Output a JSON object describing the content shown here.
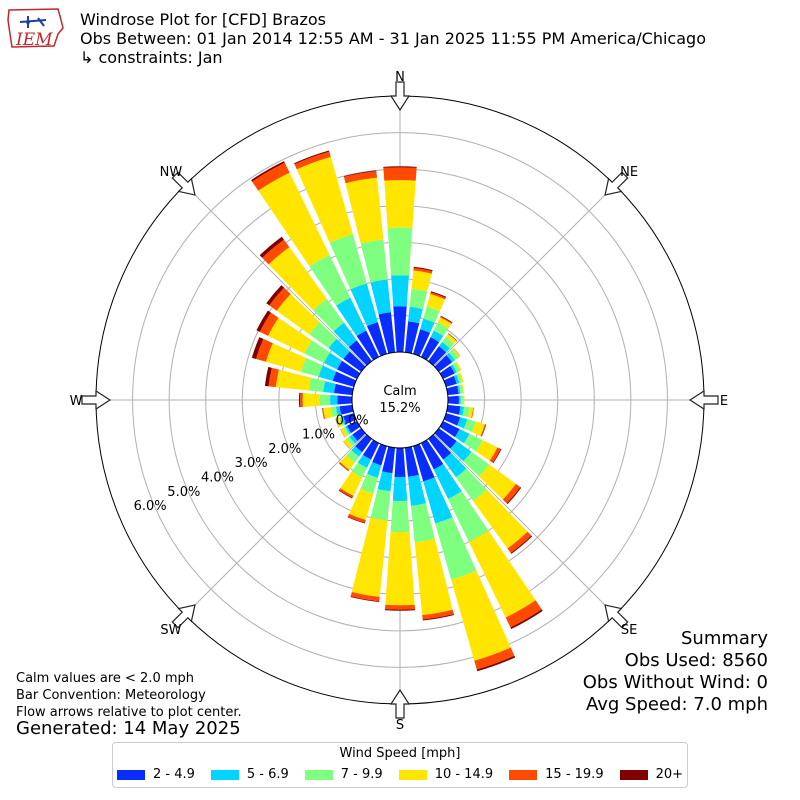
{
  "header": {
    "logo_text": "IEM",
    "title": "Windrose Plot for [CFD] Brazos",
    "subtitle": "Obs Between: 01 Jan 2014 12:55 AM - 31 Jan 2025 11:55 PM America/Chicago",
    "constraints": "↳ constraints: Jan"
  },
  "notes": {
    "calm_note": "Calm values are < 2.0 mph",
    "bar_convention": "Bar Convention: Meteorology",
    "flow_note": "Flow arrows relative to plot center.",
    "generated": "Generated: 14 May 2025"
  },
  "summary": {
    "heading": "Summary",
    "obs_used": "Obs Used: 8560",
    "obs_without_wind": "Obs Without Wind: 0",
    "avg_speed": "Avg Speed: 7.0 mph"
  },
  "legend": {
    "title": "Wind Speed [mph]"
  },
  "chart_data": {
    "type": "windrose",
    "calm_label": "Calm",
    "calm_percent": "15.2%",
    "radial_ticks": [
      "0.0%",
      "1.0%",
      "2.0%",
      "3.0%",
      "4.0%",
      "5.0%",
      "6.0%"
    ],
    "radial_max": 7.0,
    "directions": [
      "N",
      "NE",
      "E",
      "SE",
      "S",
      "SW",
      "W",
      "NW"
    ],
    "bins": [
      {
        "label": "2 - 4.9",
        "color": "#0a2dff"
      },
      {
        "label": "5 - 6.9",
        "color": "#00d4ff"
      },
      {
        "label": "7 - 9.9",
        "color": "#7fff7f"
      },
      {
        "label": "10 - 14.9",
        "color": "#ffe500"
      },
      {
        "label": "15 - 19.9",
        "color": "#ff4a00"
      },
      {
        "label": "20+",
        "color": "#800000"
      }
    ],
    "sector_angles": [
      0,
      10,
      20,
      30,
      40,
      50,
      60,
      70,
      80,
      90,
      100,
      110,
      120,
      130,
      140,
      150,
      160,
      170,
      180,
      190,
      200,
      210,
      220,
      230,
      240,
      250,
      260,
      270,
      280,
      290,
      300,
      310,
      320,
      330,
      340,
      350
    ],
    "cumulative": [
      [
        1.25,
        2.1,
        3.4,
        4.7,
        5.05,
        5.08
      ],
      [
        0.85,
        1.25,
        1.75,
        2.25,
        2.32,
        2.35
      ],
      [
        0.7,
        1.0,
        1.35,
        1.7,
        1.75,
        1.78
      ],
      [
        0.6,
        0.8,
        1.05,
        1.2,
        1.23,
        1.25
      ],
      [
        0.5,
        0.65,
        0.82,
        0.92,
        0.93,
        0.94
      ],
      [
        0.45,
        0.55,
        0.68,
        0.72,
        0.73,
        0.73
      ],
      [
        0.35,
        0.42,
        0.52,
        0.56,
        0.56,
        0.56
      ],
      [
        0.3,
        0.38,
        0.45,
        0.5,
        0.5,
        0.5
      ],
      [
        0.3,
        0.35,
        0.42,
        0.45,
        0.45,
        0.45
      ],
      [
        0.3,
        0.35,
        0.42,
        0.45,
        0.45,
        0.45
      ],
      [
        0.35,
        0.45,
        0.6,
        0.7,
        0.72,
        0.72
      ],
      [
        0.4,
        0.6,
        0.85,
        1.1,
        1.13,
        1.14
      ],
      [
        0.5,
        0.8,
        1.2,
        1.65,
        1.75,
        1.77
      ],
      [
        0.6,
        1.1,
        1.7,
        2.6,
        2.75,
        2.78
      ],
      [
        0.7,
        1.3,
        2.1,
        3.7,
        3.85,
        3.88
      ],
      [
        0.8,
        1.7,
        3.0,
        5.3,
        5.6,
        5.65
      ],
      [
        1.0,
        2.2,
        3.8,
        6.1,
        6.35,
        6.4
      ],
      [
        0.8,
        1.6,
        2.6,
        4.6,
        4.72,
        4.75
      ],
      [
        0.8,
        1.45,
        2.3,
        4.3,
        4.42,
        4.45
      ],
      [
        0.7,
        1.2,
        2.0,
        4.1,
        4.22,
        4.24
      ],
      [
        0.55,
        0.9,
        1.35,
        2.1,
        2.18,
        2.2
      ],
      [
        0.5,
        0.75,
        1.05,
        1.6,
        1.66,
        1.68
      ],
      [
        0.45,
        0.6,
        0.8,
        1.05,
        1.08,
        1.09
      ],
      [
        0.3,
        0.4,
        0.5,
        0.6,
        0.61,
        0.61
      ],
      [
        0.3,
        0.35,
        0.42,
        0.5,
        0.51,
        0.51
      ],
      [
        0.3,
        0.36,
        0.42,
        0.52,
        0.53,
        0.53
      ],
      [
        0.35,
        0.45,
        0.6,
        0.8,
        0.82,
        0.83
      ],
      [
        0.4,
        0.6,
        0.9,
        1.35,
        1.42,
        1.45
      ],
      [
        0.5,
        0.8,
        1.2,
        2.1,
        2.3,
        2.4
      ],
      [
        0.6,
        1.0,
        1.5,
        2.5,
        2.78,
        2.9
      ],
      [
        0.6,
        1.0,
        1.6,
        2.7,
        2.95,
        3.05
      ],
      [
        0.6,
        1.1,
        1.75,
        2.85,
        3.1,
        3.2
      ],
      [
        0.7,
        1.3,
        2.1,
        3.85,
        4.1,
        4.2
      ],
      [
        0.8,
        1.8,
        3.1,
        5.6,
        5.9,
        5.95
      ],
      [
        0.9,
        2.0,
        3.4,
        5.6,
        5.75,
        5.78
      ],
      [
        1.1,
        2.0,
        3.1,
        4.8,
        4.98,
        5.0
      ]
    ]
  }
}
